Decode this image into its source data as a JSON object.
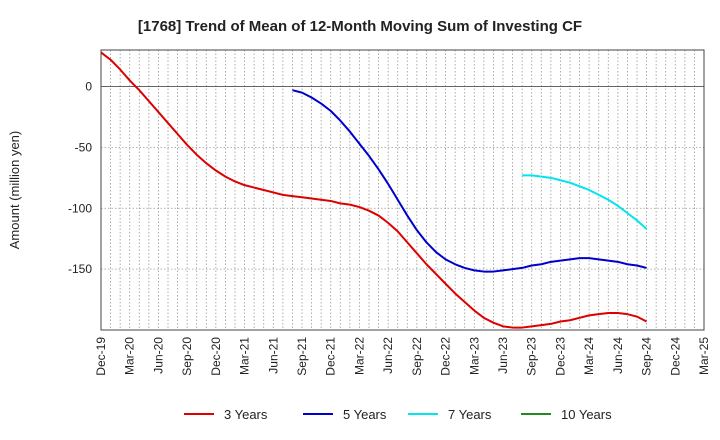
{
  "chart_data": {
    "type": "line",
    "title": "[1768]  Trend of Mean of 12-Month Moving Sum of Investing CF",
    "xlabel": "",
    "ylabel": "Amount (million yen)",
    "ylim": [
      -200,
      30
    ],
    "yticks": [
      0,
      -50,
      -100,
      -150
    ],
    "categories": [
      "Dec-19",
      "Mar-20",
      "Jun-20",
      "Sep-20",
      "Dec-20",
      "Mar-21",
      "Jun-21",
      "Sep-21",
      "Dec-21",
      "Mar-22",
      "Jun-22",
      "Sep-22",
      "Dec-22",
      "Mar-23",
      "Jun-23",
      "Sep-23",
      "Dec-23",
      "Mar-24",
      "Jun-24",
      "Sep-24",
      "Dec-24",
      "Mar-25"
    ],
    "grid": true,
    "legend_position": "bottom",
    "series": [
      {
        "name": "3 Years",
        "color": "#dd0000",
        "x": [
          "Dec-19",
          "Jan-20",
          "Feb-20",
          "Mar-20",
          "Apr-20",
          "May-20",
          "Jun-20",
          "Jul-20",
          "Aug-20",
          "Sep-20",
          "Oct-20",
          "Nov-20",
          "Dec-20",
          "Jan-21",
          "Feb-21",
          "Mar-21",
          "Apr-21",
          "May-21",
          "Jun-21",
          "Jul-21",
          "Aug-21",
          "Sep-21",
          "Oct-21",
          "Nov-21",
          "Dec-21",
          "Jan-22",
          "Feb-22",
          "Mar-22",
          "Apr-22",
          "May-22",
          "Jun-22",
          "Jul-22",
          "Aug-22",
          "Sep-22",
          "Oct-22",
          "Nov-22",
          "Dec-22",
          "Jan-23",
          "Feb-23",
          "Mar-23",
          "Apr-23",
          "May-23",
          "Jun-23",
          "Jul-23",
          "Aug-23",
          "Sep-23",
          "Oct-23",
          "Nov-23",
          "Dec-23",
          "Jan-24",
          "Feb-24",
          "Mar-24",
          "Apr-24",
          "May-24",
          "Jun-24",
          "Jul-24",
          "Aug-24",
          "Sep-24"
        ],
        "values": [
          28,
          22,
          14,
          5,
          -3,
          -12,
          -21,
          -30,
          -39,
          -48,
          -56,
          -63,
          -69,
          -74,
          -78,
          -81,
          -83,
          -85,
          -87,
          -89,
          -90,
          -91,
          -92,
          -93,
          -94,
          -96,
          -97,
          -99,
          -102,
          -106,
          -112,
          -119,
          -128,
          -137,
          -146,
          -154,
          -162,
          -170,
          -177,
          -184,
          -190,
          -194,
          -197,
          -198,
          -198,
          -197,
          -196,
          -195,
          -193,
          -192,
          -190,
          -188,
          -187,
          -186,
          -186,
          -187,
          -189,
          -193
        ]
      },
      {
        "name": "5 Years",
        "color": "#0000cc",
        "x": [
          "Aug-21",
          "Sep-21",
          "Oct-21",
          "Nov-21",
          "Dec-21",
          "Jan-22",
          "Feb-22",
          "Mar-22",
          "Apr-22",
          "May-22",
          "Jun-22",
          "Jul-22",
          "Aug-22",
          "Sep-22",
          "Oct-22",
          "Nov-22",
          "Dec-22",
          "Jan-23",
          "Feb-23",
          "Mar-23",
          "Apr-23",
          "May-23",
          "Jun-23",
          "Jul-23",
          "Aug-23",
          "Sep-23",
          "Oct-23",
          "Nov-23",
          "Dec-23",
          "Jan-24",
          "Feb-24",
          "Mar-24",
          "Apr-24",
          "May-24",
          "Jun-24",
          "Jul-24",
          "Aug-24",
          "Sep-24"
        ],
        "values": [
          -3,
          -5,
          -9,
          -14,
          -20,
          -28,
          -37,
          -47,
          -57,
          -68,
          -80,
          -93,
          -106,
          -118,
          -128,
          -136,
          -142,
          -146,
          -149,
          -151,
          -152,
          -152,
          -151,
          -150,
          -149,
          -147,
          -146,
          -144,
          -143,
          -142,
          -141,
          -141,
          -142,
          -143,
          -144,
          -146,
          -147,
          -149
        ]
      },
      {
        "name": "7 Years",
        "color": "#00e5ee",
        "x": [
          "Aug-23",
          "Sep-23",
          "Oct-23",
          "Nov-23",
          "Dec-23",
          "Jan-24",
          "Feb-24",
          "Mar-24",
          "Apr-24",
          "May-24",
          "Jun-24",
          "Jul-24",
          "Aug-24",
          "Sep-24"
        ],
        "values": [
          -73,
          -73,
          -74,
          -75,
          -77,
          -79,
          -82,
          -85,
          -89,
          -93,
          -98,
          -104,
          -110,
          -117
        ]
      },
      {
        "name": "10 Years",
        "color": "#228b22",
        "x": [],
        "values": []
      }
    ]
  }
}
